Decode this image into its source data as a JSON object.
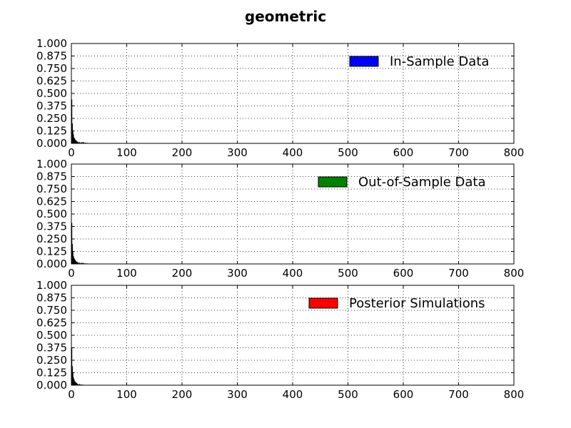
{
  "figure_title": "geometric",
  "colors": {
    "bar": "#000000",
    "in_sample": "#0000ff",
    "out_of_sample": "#008000",
    "posterior": "#ff0000"
  },
  "chart_data": [
    {
      "type": "bar",
      "title": "",
      "xlabel": "",
      "ylabel": "",
      "xlim": [
        0,
        800
      ],
      "ylim": [
        0,
        1
      ],
      "xticks": [
        "0",
        "100",
        "200",
        "300",
        "400",
        "500",
        "600",
        "700",
        "800"
      ],
      "yticks": [
        "0.000",
        "0.125",
        "0.250",
        "0.375",
        "0.500",
        "0.625",
        "0.750",
        "0.875",
        "1.000"
      ],
      "grid": true,
      "legend_position": "top-right",
      "series": [
        {
          "name": "In-Sample Data",
          "color": "#0000ff",
          "x": [
            0,
            1,
            2,
            3,
            4,
            5,
            6,
            7,
            8,
            9,
            10,
            12,
            14,
            16,
            18,
            20,
            22,
            25,
            28
          ],
          "values": [
            0.44,
            0.2,
            0.12,
            0.09,
            0.06,
            0.05,
            0.04,
            0.03,
            0.03,
            0.02,
            0.02,
            0.015,
            0.012,
            0.01,
            0.01,
            0.015,
            0.01,
            0.008,
            0.005
          ]
        }
      ]
    },
    {
      "type": "bar",
      "title": "",
      "xlabel": "",
      "ylabel": "",
      "xlim": [
        0,
        800
      ],
      "ylim": [
        0,
        1
      ],
      "xticks": [
        "0",
        "100",
        "200",
        "300",
        "400",
        "500",
        "600",
        "700",
        "800"
      ],
      "yticks": [
        "0.000",
        "0.125",
        "0.250",
        "0.375",
        "0.500",
        "0.625",
        "0.750",
        "0.875",
        "1.000"
      ],
      "grid": true,
      "legend_position": "top-right",
      "series": [
        {
          "name": "Out-of-Sample Data",
          "color": "#008000",
          "x": [
            0,
            1,
            2,
            3,
            4,
            5,
            6,
            7,
            8,
            9,
            10,
            12,
            14,
            16,
            18,
            20,
            22,
            25,
            28,
            32
          ],
          "values": [
            0.41,
            0.2,
            0.12,
            0.08,
            0.06,
            0.05,
            0.04,
            0.03,
            0.025,
            0.02,
            0.02,
            0.015,
            0.012,
            0.01,
            0.01,
            0.012,
            0.008,
            0.006,
            0.005,
            0.004
          ]
        }
      ]
    },
    {
      "type": "bar",
      "title": "",
      "xlabel": "",
      "ylabel": "",
      "xlim": [
        0,
        800
      ],
      "ylim": [
        0,
        1
      ],
      "xticks": [
        "0",
        "100",
        "200",
        "300",
        "400",
        "500",
        "600",
        "700",
        "800"
      ],
      "yticks": [
        "0.000",
        "0.125",
        "0.250",
        "0.375",
        "0.500",
        "0.625",
        "0.750",
        "0.875",
        "1.000"
      ],
      "grid": true,
      "legend_position": "top-right",
      "series": [
        {
          "name": "Posterior Simulations",
          "color": "#ff0000",
          "x": [
            0,
            1,
            2,
            3,
            4,
            5,
            6,
            7,
            8,
            9,
            10,
            12,
            14,
            16,
            18,
            20,
            22
          ],
          "values": [
            0.38,
            0.19,
            0.12,
            0.08,
            0.06,
            0.045,
            0.035,
            0.03,
            0.025,
            0.02,
            0.015,
            0.012,
            0.01,
            0.008,
            0.006,
            0.005,
            0.004
          ]
        }
      ]
    }
  ]
}
